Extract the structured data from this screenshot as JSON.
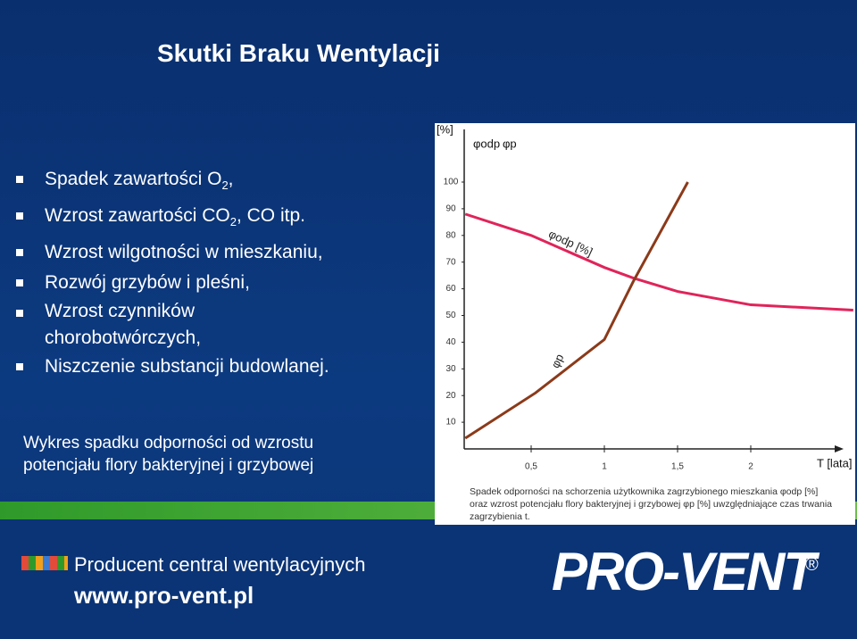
{
  "title": "Skutki Braku Wentylacji",
  "bullets": [
    {
      "text": "Spadek zawartości O",
      "sub": "2",
      "tail": ","
    },
    {
      "text": "Wzrost zawartości CO",
      "sub": "2",
      "tail": ", CO itp."
    },
    {
      "text": "Wzrost wilgotności w mieszkaniu,"
    },
    {
      "text": "Rozwój grzybów i pleśni,"
    },
    {
      "text": "Wzrost czynników chorobotwórczych,"
    },
    {
      "text": "Niszczenie substancji budowlanej."
    }
  ],
  "caption": [
    "Wykres spadku odporności od wzrostu",
    "potencjału flory bakteryjnej i grzybowej"
  ],
  "chart_data": {
    "type": "line",
    "y_label": "[%]",
    "x_label": "T [lata]",
    "xlim": [
      0,
      2.7
    ],
    "ylim": [
      0,
      120
    ],
    "xticks": [
      {
        "value": 0.5,
        "label": "0,5"
      },
      1,
      {
        "value": 1.5,
        "label": "1,5"
      },
      2
    ],
    "yticks": [
      10,
      20,
      30,
      40,
      50,
      60,
      70,
      80,
      90,
      100
    ],
    "series": [
      {
        "name": "φodp",
        "color": "#e0245a",
        "x": [
          0.05,
          0.5,
          1,
          1.2,
          1.5,
          2,
          2.7
        ],
        "values": [
          88,
          80,
          68,
          64,
          59,
          54,
          52
        ]
      },
      {
        "name": "φp",
        "color": "#8b3a1a",
        "x": [
          0.05,
          0.53,
          1,
          1.2,
          1.38,
          1.57
        ],
        "values": [
          4,
          21,
          41,
          63,
          81,
          100
        ]
      }
    ],
    "annotations": [
      "φodp [%]",
      "φp"
    ],
    "note": [
      "Spadek odporności na schorzenia użytkownika zagrzybionego mieszkania φodp [%]",
      "oraz wzrost potencjału flory bakteryjnej i grzybowej φp [%] uwzględniające czas trwania",
      "zagrzybienia  t."
    ]
  },
  "footer": {
    "tagline": "Producent central wentylacyjnych",
    "url": "www.pro-vent.pl",
    "logo": "PRO-VENT",
    "reg": "®"
  }
}
